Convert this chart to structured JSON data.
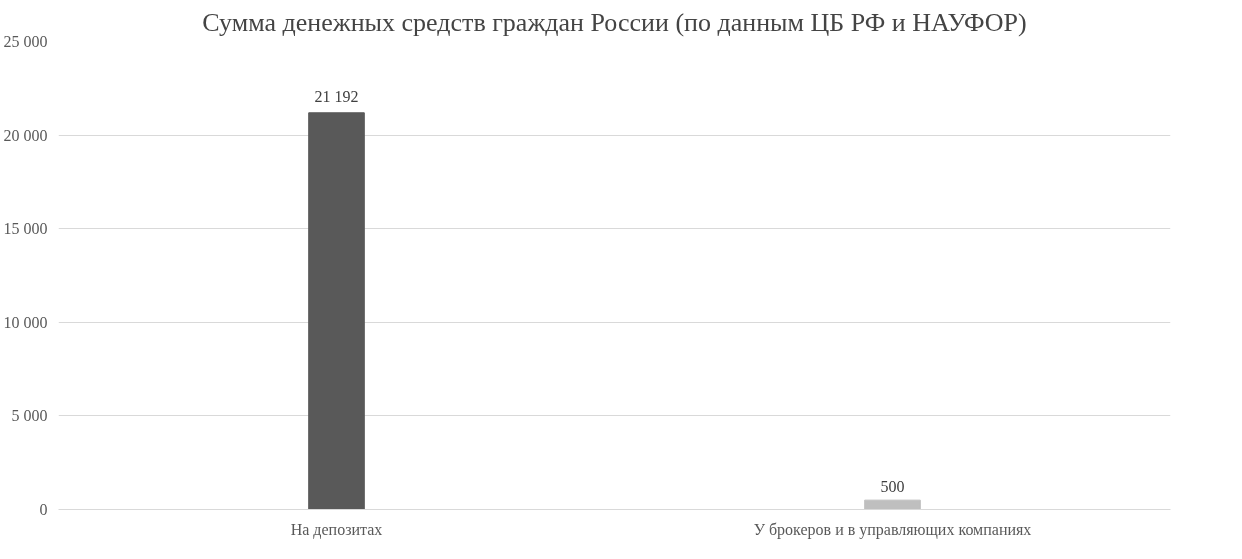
{
  "chart_data": {
    "type": "bar",
    "title": "Сумма денежных средств граждан России (по данным ЦБ РФ и НАУФОР)",
    "categories": [
      "На депозитах",
      "У брокеров и в управляющих компаниях"
    ],
    "values": [
      21192,
      500
    ],
    "colors": [
      "#595959",
      "#bfbfbf"
    ],
    "value_labels": [
      "21 192",
      "500"
    ],
    "ylim": [
      0,
      25000
    ],
    "yticks": [
      {
        "value": 0,
        "label": "0"
      },
      {
        "value": 5000,
        "label": "5 000"
      },
      {
        "value": 10000,
        "label": "10 000"
      },
      {
        "value": 15000,
        "label": "15 000"
      },
      {
        "value": 20000,
        "label": "20 000"
      },
      {
        "value": 25000,
        "label": "25 000"
      }
    ],
    "grid": "y"
  }
}
